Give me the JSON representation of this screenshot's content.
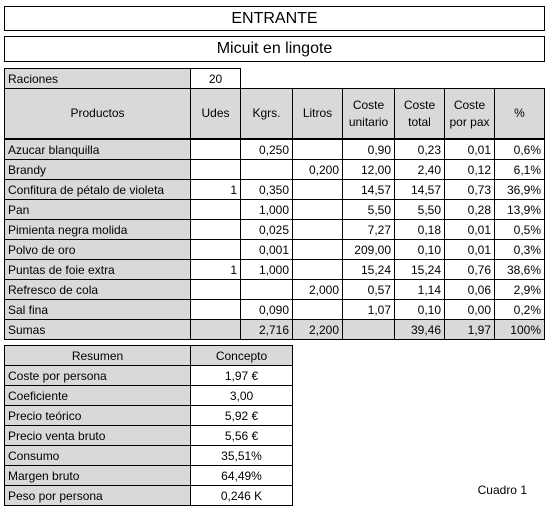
{
  "header": {
    "title": "ENTRANTE",
    "subtitle": "Micuit en lingote"
  },
  "raciones": {
    "label": "Raciones",
    "value": "20"
  },
  "table": {
    "columns": [
      "Productos",
      "Udes",
      "Kgrs.",
      "Litros",
      "Coste unitario",
      "Coste total",
      "Coste por pax",
      "%"
    ],
    "rows": [
      [
        "Azucar blanquilla",
        null,
        "0,250",
        null,
        "0,90",
        "0,23",
        "0,01",
        "0,6%"
      ],
      [
        "Brandy",
        null,
        null,
        "0,200",
        "12,00",
        "2,40",
        "0,12",
        "6,1%"
      ],
      [
        "Confitura de pétalo de violeta",
        "1",
        "0,350",
        null,
        "14,57",
        "14,57",
        "0,73",
        "36,9%"
      ],
      [
        "Pan",
        null,
        "1,000",
        null,
        "5,50",
        "5,50",
        "0,28",
        "13,9%"
      ],
      [
        "Pimienta negra molida",
        null,
        "0,025",
        null,
        "7,27",
        "0,18",
        "0,01",
        "0,5%"
      ],
      [
        "Polvo de oro",
        null,
        "0,001",
        null,
        "209,00",
        "0,10",
        "0,01",
        "0,3%"
      ],
      [
        "Puntas de foie extra",
        "1",
        "1,000",
        null,
        "15,24",
        "15,24",
        "0,76",
        "38,6%"
      ],
      [
        "Refresco de cola",
        null,
        null,
        "2,000",
        "0,57",
        "1,14",
        "0,06",
        "2,9%"
      ],
      [
        "Sal fina",
        null,
        "0,090",
        null,
        "1,07",
        "0,10",
        "0,00",
        "0,2%"
      ]
    ],
    "totals": [
      "Sumas",
      null,
      "2,716",
      "2,200",
      null,
      "39,46",
      "1,97",
      "100%"
    ]
  },
  "summary": {
    "columns": [
      "Resumen",
      "Concepto"
    ],
    "rows": [
      [
        "Coste por persona",
        "1,97 €"
      ],
      [
        "Coeficiente",
        "3,00"
      ],
      [
        "Precio teórico",
        "5,92 €"
      ],
      [
        "Precio venta bruto",
        "5,56 €"
      ],
      [
        "Consumo",
        "35,51%"
      ],
      [
        "Margen bruto",
        "64,49%"
      ],
      [
        "Peso por persona",
        "0,246 K"
      ]
    ]
  },
  "footer": {
    "caption": "Cuadro 1"
  }
}
